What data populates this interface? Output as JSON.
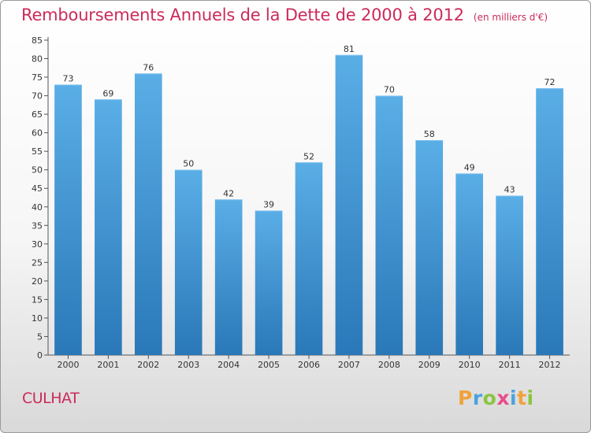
{
  "chart_data": {
    "type": "bar",
    "title": "Remboursements Annuels de la Dette de 2000 à 2012",
    "subtitle": "(en milliers d'€)",
    "categories": [
      "2000",
      "2001",
      "2002",
      "2003",
      "2004",
      "2005",
      "2006",
      "2007",
      "2008",
      "2009",
      "2010",
      "2011",
      "2012"
    ],
    "values": [
      73,
      69,
      76,
      50,
      42,
      39,
      52,
      81,
      70,
      58,
      49,
      43,
      72
    ],
    "ylim": [
      0,
      85
    ],
    "yticks": [
      0,
      5,
      10,
      15,
      20,
      25,
      30,
      35,
      40,
      45,
      50,
      55,
      60,
      65,
      70,
      75,
      80,
      85
    ],
    "xlabel": "",
    "ylabel": "",
    "grid": false,
    "bar_color": "#4a9fdc",
    "bar_color_dark": "#2e7fc0"
  },
  "commune": "CULHAT",
  "logo": {
    "letters": [
      "P",
      "r",
      "o",
      "x",
      "i",
      "t",
      "i"
    ],
    "colors": [
      "#f0a23a",
      "#4aa3df",
      "#8cc43f",
      "#e84c8b",
      "#4aa3df",
      "#f0a23a",
      "#8cc43f"
    ]
  }
}
